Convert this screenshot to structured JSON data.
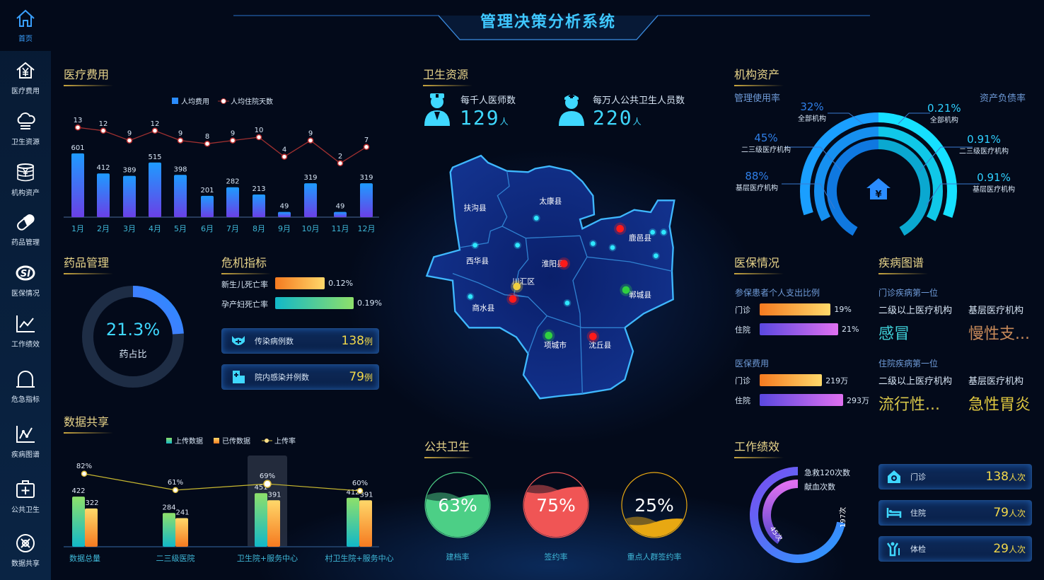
{
  "title": "管理决策分析系统",
  "sidebar": {
    "items": [
      {
        "label": "首页",
        "icon": "home-icon"
      },
      {
        "label": "医疗费用",
        "icon": "house-yen-icon"
      },
      {
        "label": "卫生资源",
        "icon": "cloud-icon"
      },
      {
        "label": "机构资产",
        "icon": "coin-stack-icon"
      },
      {
        "label": "药品管理",
        "icon": "pill-icon"
      },
      {
        "label": "医保情况",
        "icon": "si-logo-icon"
      },
      {
        "label": "工作绩效",
        "icon": "line-chart-icon"
      },
      {
        "label": "危急指标",
        "icon": "bell-icon"
      },
      {
        "label": "疾病图谱",
        "icon": "trend-chart-icon"
      },
      {
        "label": "公共卫生",
        "icon": "first-aid-icon"
      },
      {
        "label": "数据共享",
        "icon": "share-icon"
      }
    ]
  },
  "sections": {
    "medical_cost": "医疗费用",
    "health_resources": "卫生资源",
    "assets": "机构资产",
    "drugs": "药品管理",
    "crisis": "危机指标",
    "insurance": "医保情况",
    "disease": "疾病图谱",
    "data_share": "数据共享",
    "public_health": "公共卫生",
    "performance": "工作绩效"
  },
  "chart_data": [
    {
      "type": "bar",
      "id": "medical_cost",
      "categories": [
        "1月",
        "2月",
        "3月",
        "4月",
        "5月",
        "6月",
        "7月",
        "8月",
        "9月",
        "10月",
        "11月",
        "12月"
      ],
      "series": [
        {
          "name": "人均费用",
          "type": "bar",
          "values": [
            601,
            412,
            389,
            515,
            398,
            201,
            282,
            213,
            49,
            319,
            49,
            319
          ]
        },
        {
          "name": "人均住院天数",
          "type": "line",
          "values": [
            13,
            12,
            9,
            12,
            9,
            8,
            9,
            10,
            4,
            9,
            2,
            7
          ]
        }
      ],
      "legend": "top-center",
      "grid": false
    },
    {
      "type": "bar",
      "id": "data_share",
      "categories": [
        "数据总量",
        "二三级医院",
        "卫生院+服务中心",
        "村卫生院+服务中心"
      ],
      "series": [
        {
          "name": "上传数据",
          "type": "bar",
          "values": [
            422,
            284,
            451,
            412
          ]
        },
        {
          "name": "已传数据",
          "type": "bar",
          "values": [
            322,
            241,
            391,
            391
          ]
        },
        {
          "name": "上传率",
          "type": "line",
          "values": [
            82,
            61,
            69,
            60
          ],
          "labels": [
            "82%",
            "61%",
            "69%",
            "60%"
          ]
        }
      ],
      "highlighted": "卫生院+服务中心",
      "legend": "top-center",
      "grid": false
    }
  ],
  "health_resources": {
    "doctors": {
      "label": "每千人医师数",
      "value": "129",
      "unit": "人"
    },
    "staff": {
      "label": "每万人公共卫生人员数",
      "value": "220",
      "unit": "人"
    }
  },
  "map": {
    "regions": [
      "扶沟县",
      "太康县",
      "西华县",
      "淮阳县",
      "鹿邑县",
      "川汇区",
      "郸城县",
      "商水县",
      "项城市",
      "沈丘县"
    ]
  },
  "assets": {
    "left_title": "管理使用率",
    "right_title": "资产负债率",
    "left": [
      {
        "value": "32%",
        "label": "全部机构"
      },
      {
        "value": "45%",
        "label": "二三级医疗机构"
      },
      {
        "value": "88%",
        "label": "基层医疗机构"
      }
    ],
    "right": [
      {
        "value": "0.21%",
        "label": "全部机构"
      },
      {
        "value": "0.91%",
        "label": "二三级医疗机构"
      },
      {
        "value": "0.91%",
        "label": "基层医疗机构"
      }
    ],
    "center_icon": "house-yen-icon"
  },
  "drugs": {
    "value": "21.3%",
    "percent": 21.3,
    "label": "药占比"
  },
  "crisis": {
    "rates": [
      {
        "label": "新生儿死亡率",
        "value": "0.12%",
        "level": 0.12
      },
      {
        "label": "孕产妇死亡率",
        "value": "0.19%",
        "level": 0.19
      }
    ],
    "cards": [
      {
        "label": "传染病例数",
        "value": "138",
        "unit": "例",
        "icon": "virus-mask-icon"
      },
      {
        "label": "院内感染并例数",
        "value": "79",
        "unit": "例",
        "icon": "hospital-icon"
      }
    ]
  },
  "insurance": {
    "ratio_title": "参保患者个人支出比例",
    "ratio": [
      {
        "label": "门诊",
        "value": "19%",
        "level": 19
      },
      {
        "label": "住院",
        "value": "21%",
        "level": 21
      }
    ],
    "cost_title": "医保费用",
    "cost": [
      {
        "label": "门诊",
        "value": "219万",
        "level": 219
      },
      {
        "label": "住院",
        "value": "293万",
        "level": 293
      }
    ]
  },
  "disease": {
    "outpatient_title": "门诊疾病第一位",
    "inpatient_title": "住院疾病第一位",
    "col1": "二级以上医疗机构",
    "col2": "基层医疗机构",
    "outpatient": [
      "感冒",
      "慢性支..."
    ],
    "inpatient": [
      "流行性...",
      "急性胃炎"
    ],
    "colors": {
      "cyan": "#3fd0d8",
      "brown": "#c88a5a",
      "yellow": "#d6c54a"
    }
  },
  "public_health": [
    {
      "value": "63%",
      "level": 63,
      "label": "建档率",
      "color": "#4ccf86"
    },
    {
      "value": "75%",
      "level": 75,
      "label": "签约率",
      "color": "#f05555"
    },
    {
      "value": "25%",
      "level": 25,
      "label": "重点人群签约率",
      "color": "#e8a812"
    }
  ],
  "performance": {
    "rings": [
      {
        "label": "急救120次数",
        "value": "197次",
        "level": 197
      },
      {
        "label": "献血次数",
        "value": "45次",
        "level": 45
      }
    ],
    "cards": [
      {
        "label": "门诊",
        "value": "138",
        "unit": "人次",
        "icon": "clinic-icon"
      },
      {
        "label": "住院",
        "value": "79",
        "unit": "人次",
        "icon": "bed-icon"
      },
      {
        "label": "体检",
        "value": "29",
        "unit": "人次",
        "icon": "person-checkup-icon"
      }
    ]
  }
}
